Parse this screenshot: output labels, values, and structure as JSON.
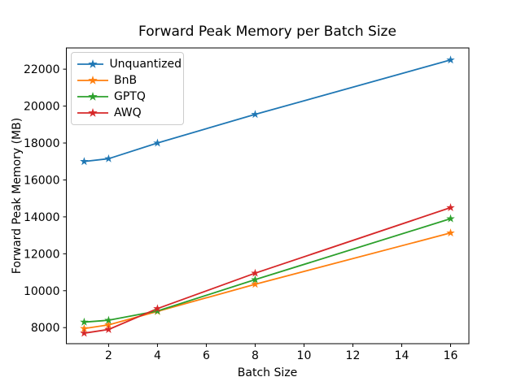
{
  "window": {
    "background": "#ffffff"
  },
  "chart_data": {
    "type": "line",
    "title": "Forward Peak Memory per Batch Size",
    "xlabel": "Batch Size",
    "ylabel": "Forward Peak Memory (MB)",
    "x": [
      1,
      2,
      4,
      8,
      16
    ],
    "series": [
      {
        "name": "Unquantized",
        "color": "#1f77b4",
        "values": [
          17000,
          17150,
          18000,
          19550,
          22500
        ]
      },
      {
        "name": "BnB",
        "color": "#ff7f0e",
        "values": [
          7950,
          8150,
          8880,
          10350,
          13130
        ]
      },
      {
        "name": "GPTQ",
        "color": "#2ca02c",
        "values": [
          8300,
          8400,
          8900,
          10600,
          13900
        ]
      },
      {
        "name": "AWQ",
        "color": "#d62728",
        "values": [
          7700,
          7900,
          9030,
          10950,
          14500
        ]
      }
    ],
    "marker": "star",
    "line_width": 1.8,
    "xticks": [
      2,
      4,
      6,
      8,
      10,
      12,
      14,
      16
    ],
    "yticks": [
      8000,
      10000,
      12000,
      14000,
      16000,
      18000,
      20000,
      22000
    ],
    "xlim": [
      0.27,
      16.75
    ],
    "ylim": [
      7130,
      23150
    ],
    "grid": false,
    "legend": {
      "position": "upper-left",
      "entries": [
        "Unquantized",
        "BnB",
        "GPTQ",
        "AWQ"
      ]
    },
    "axis_color": "#000000"
  }
}
